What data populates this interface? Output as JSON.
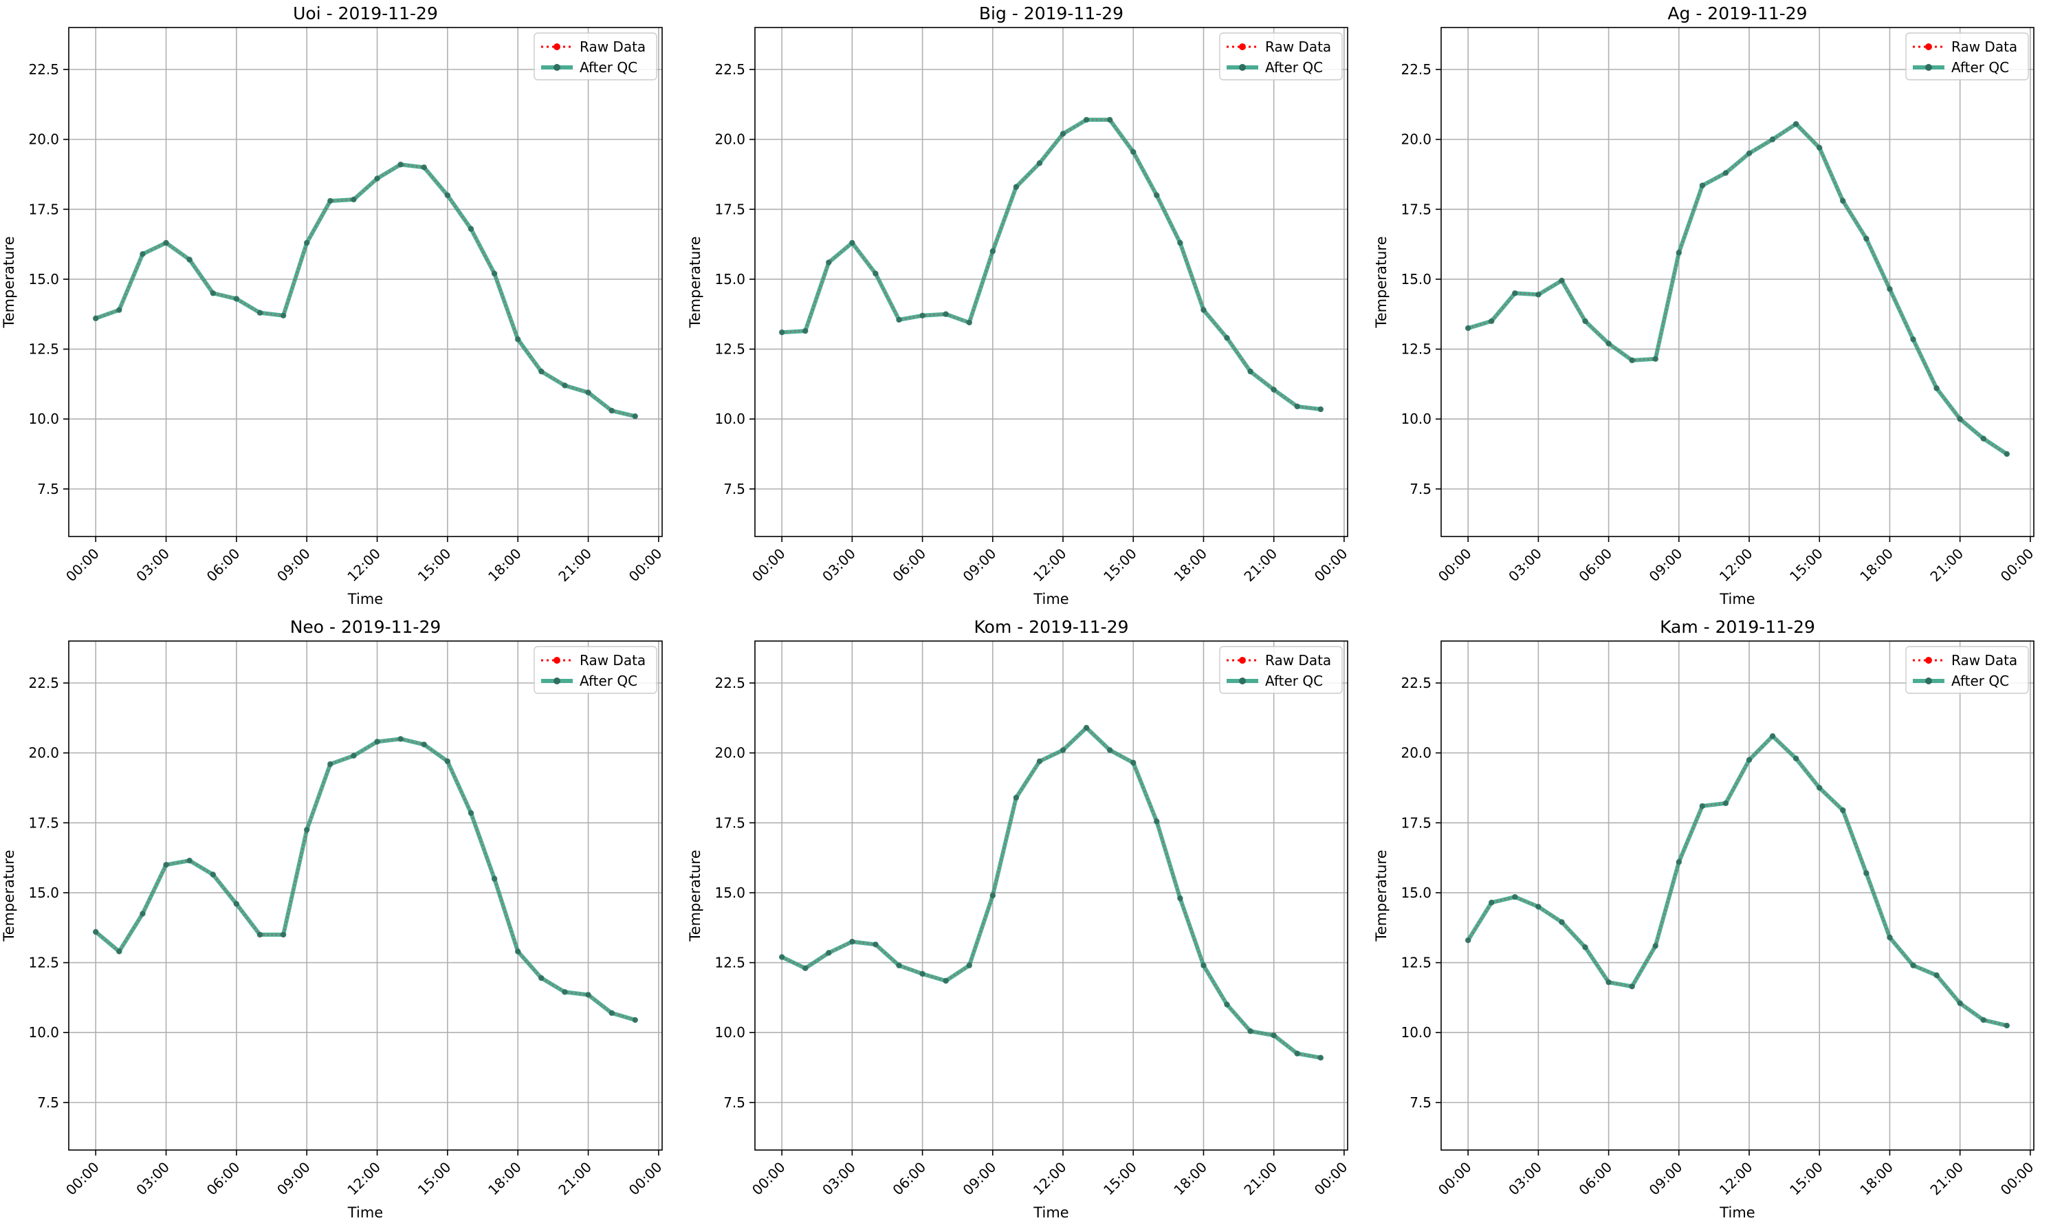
{
  "colors": {
    "raw": "#ff0000",
    "qc": "#2a9d7f",
    "qc_marker": "#2e6e5e"
  },
  "legend": {
    "raw": "Raw Data",
    "qc": "After QC",
    "position": "upper-right"
  },
  "chart_data": [
    {
      "type": "line",
      "title": "Uoi - 2019-11-29",
      "xlabel": "Time",
      "ylabel": "Temperature",
      "xticks": [
        "00:00",
        "03:00",
        "06:00",
        "09:00",
        "12:00",
        "15:00",
        "18:00",
        "21:00",
        "00:00"
      ],
      "yticks": [
        "7.5",
        "10.0",
        "12.5",
        "15.0",
        "17.5",
        "20.0",
        "22.5"
      ],
      "ylim": [
        5.8,
        24.0
      ],
      "x_hours": [
        0,
        1,
        2,
        3,
        4,
        5,
        6,
        7,
        8,
        9,
        10,
        11,
        12,
        13,
        14,
        15,
        16,
        17,
        18,
        19,
        20,
        21,
        22,
        23
      ],
      "grid": true,
      "series": [
        {
          "name": "Raw Data",
          "values": [
            13.6,
            13.9,
            15.9,
            16.3,
            15.7,
            14.5,
            14.3,
            13.8,
            13.7,
            16.3,
            17.8,
            17.85,
            18.6,
            19.1,
            19.0,
            18.0,
            16.8,
            15.2,
            12.85,
            11.7,
            11.2,
            10.95,
            10.3,
            10.1
          ]
        },
        {
          "name": "After QC",
          "values": [
            13.6,
            13.9,
            15.9,
            16.3,
            15.7,
            14.5,
            14.3,
            13.8,
            13.7,
            16.3,
            17.8,
            17.85,
            18.6,
            19.1,
            19.0,
            18.0,
            16.8,
            15.2,
            12.85,
            11.7,
            11.2,
            10.95,
            10.3,
            10.1
          ]
        }
      ]
    },
    {
      "type": "line",
      "title": "Big - 2019-11-29",
      "xlabel": "Time",
      "ylabel": "Temperature",
      "xticks": [
        "00:00",
        "03:00",
        "06:00",
        "09:00",
        "12:00",
        "15:00",
        "18:00",
        "21:00",
        "00:00"
      ],
      "yticks": [
        "7.5",
        "10.0",
        "12.5",
        "15.0",
        "17.5",
        "20.0",
        "22.5"
      ],
      "ylim": [
        5.8,
        24.0
      ],
      "x_hours": [
        0,
        1,
        2,
        3,
        4,
        5,
        6,
        7,
        8,
        9,
        10,
        11,
        12,
        13,
        14,
        15,
        16,
        17,
        18,
        19,
        20,
        21,
        22,
        23
      ],
      "grid": true,
      "series": [
        {
          "name": "Raw Data",
          "values": [
            13.1,
            13.15,
            15.6,
            16.3,
            15.2,
            13.55,
            13.7,
            13.75,
            13.45,
            16.0,
            18.3,
            19.15,
            20.2,
            20.7,
            20.7,
            19.55,
            18.0,
            16.3,
            13.9,
            12.9,
            11.7,
            11.05,
            10.45,
            10.35
          ]
        },
        {
          "name": "After QC",
          "values": [
            13.1,
            13.15,
            15.6,
            16.3,
            15.2,
            13.55,
            13.7,
            13.75,
            13.45,
            16.0,
            18.3,
            19.15,
            20.2,
            20.7,
            20.7,
            19.55,
            18.0,
            16.3,
            13.9,
            12.9,
            11.7,
            11.05,
            10.45,
            10.35
          ]
        }
      ]
    },
    {
      "type": "line",
      "title": "Ag - 2019-11-29",
      "xlabel": "Time",
      "ylabel": "Temperature",
      "xticks": [
        "00:00",
        "03:00",
        "06:00",
        "09:00",
        "12:00",
        "15:00",
        "18:00",
        "21:00",
        "00:00"
      ],
      "yticks": [
        "7.5",
        "10.0",
        "12.5",
        "15.0",
        "17.5",
        "20.0",
        "22.5"
      ],
      "ylim": [
        5.8,
        24.0
      ],
      "x_hours": [
        0,
        1,
        2,
        3,
        4,
        5,
        6,
        7,
        8,
        9,
        10,
        11,
        12,
        13,
        14,
        15,
        16,
        17,
        18,
        19,
        20,
        21,
        22,
        23
      ],
      "grid": true,
      "series": [
        {
          "name": "Raw Data",
          "values": [
            13.25,
            13.5,
            14.5,
            14.45,
            14.95,
            13.5,
            12.7,
            12.1,
            12.15,
            15.95,
            18.35,
            18.8,
            19.5,
            20.0,
            20.55,
            19.7,
            17.8,
            16.45,
            14.65,
            12.85,
            11.1,
            10.0,
            9.3,
            8.75
          ]
        },
        {
          "name": "After QC",
          "values": [
            13.25,
            13.5,
            14.5,
            14.45,
            14.95,
            13.5,
            12.7,
            12.1,
            12.15,
            15.95,
            18.35,
            18.8,
            19.5,
            20.0,
            20.55,
            19.7,
            17.8,
            16.45,
            14.65,
            12.85,
            11.1,
            10.0,
            9.3,
            8.75
          ]
        }
      ]
    },
    {
      "type": "line",
      "title": "Neo - 2019-11-29",
      "xlabel": "Time",
      "ylabel": "Temperature",
      "xticks": [
        "00:00",
        "03:00",
        "06:00",
        "09:00",
        "12:00",
        "15:00",
        "18:00",
        "21:00",
        "00:00"
      ],
      "yticks": [
        "7.5",
        "10.0",
        "12.5",
        "15.0",
        "17.5",
        "20.0",
        "22.5"
      ],
      "ylim": [
        5.8,
        24.0
      ],
      "x_hours": [
        0,
        1,
        2,
        3,
        4,
        5,
        6,
        7,
        8,
        9,
        10,
        11,
        12,
        13,
        14,
        15,
        16,
        17,
        18,
        19,
        20,
        21,
        22,
        23
      ],
      "grid": true,
      "series": [
        {
          "name": "Raw Data",
          "values": [
            13.6,
            12.9,
            14.25,
            16.0,
            16.15,
            15.65,
            14.6,
            13.5,
            13.5,
            17.25,
            19.6,
            19.9,
            20.4,
            20.5,
            20.3,
            19.7,
            17.85,
            15.5,
            12.9,
            11.95,
            11.45,
            11.35,
            10.7,
            10.45
          ]
        },
        {
          "name": "After QC",
          "values": [
            13.6,
            12.9,
            14.25,
            16.0,
            16.15,
            15.65,
            14.6,
            13.5,
            13.5,
            17.25,
            19.6,
            19.9,
            20.4,
            20.5,
            20.3,
            19.7,
            17.85,
            15.5,
            12.9,
            11.95,
            11.45,
            11.35,
            10.7,
            10.45
          ]
        }
      ]
    },
    {
      "type": "line",
      "title": "Kom - 2019-11-29",
      "xlabel": "Time",
      "ylabel": "Temperature",
      "xticks": [
        "00:00",
        "03:00",
        "06:00",
        "09:00",
        "12:00",
        "15:00",
        "18:00",
        "21:00",
        "00:00"
      ],
      "yticks": [
        "7.5",
        "10.0",
        "12.5",
        "15.0",
        "17.5",
        "20.0",
        "22.5"
      ],
      "ylim": [
        5.8,
        24.0
      ],
      "x_hours": [
        0,
        1,
        2,
        3,
        4,
        5,
        6,
        7,
        8,
        9,
        10,
        11,
        12,
        13,
        14,
        15,
        16,
        17,
        18,
        19,
        20,
        21,
        22,
        23
      ],
      "grid": true,
      "series": [
        {
          "name": "Raw Data",
          "values": [
            12.7,
            12.3,
            12.85,
            13.25,
            13.15,
            12.4,
            12.1,
            11.85,
            12.4,
            14.9,
            18.4,
            19.7,
            20.1,
            20.9,
            20.1,
            19.65,
            17.55,
            14.8,
            12.4,
            11.0,
            10.05,
            9.9,
            9.25,
            9.1
          ]
        },
        {
          "name": "After QC",
          "values": [
            12.7,
            12.3,
            12.85,
            13.25,
            13.15,
            12.4,
            12.1,
            11.85,
            12.4,
            14.9,
            18.4,
            19.7,
            20.1,
            20.9,
            20.1,
            19.65,
            17.55,
            14.8,
            12.4,
            11.0,
            10.05,
            9.9,
            9.25,
            9.1
          ]
        }
      ]
    },
    {
      "type": "line",
      "title": "Kam - 2019-11-29",
      "xlabel": "Time",
      "ylabel": "Temperature",
      "xticks": [
        "00:00",
        "03:00",
        "06:00",
        "09:00",
        "12:00",
        "15:00",
        "18:00",
        "21:00",
        "00:00"
      ],
      "yticks": [
        "7.5",
        "10.0",
        "12.5",
        "15.0",
        "17.5",
        "20.0",
        "22.5"
      ],
      "ylim": [
        5.8,
        24.0
      ],
      "x_hours": [
        0,
        1,
        2,
        3,
        4,
        5,
        6,
        7,
        8,
        9,
        10,
        11,
        12,
        13,
        14,
        15,
        16,
        17,
        18,
        19,
        20,
        21,
        22,
        23
      ],
      "grid": true,
      "series": [
        {
          "name": "Raw Data",
          "values": [
            13.3,
            14.65,
            14.85,
            14.5,
            13.95,
            13.05,
            11.8,
            11.65,
            13.1,
            16.1,
            18.1,
            18.2,
            19.75,
            20.6,
            19.8,
            18.75,
            17.95,
            15.7,
            13.4,
            12.4,
            12.05,
            11.05,
            10.45,
            10.25
          ]
        },
        {
          "name": "After QC",
          "values": [
            13.3,
            14.65,
            14.85,
            14.5,
            13.95,
            13.05,
            11.8,
            11.65,
            13.1,
            16.1,
            18.1,
            18.2,
            19.75,
            20.6,
            19.8,
            18.75,
            17.95,
            15.7,
            13.4,
            12.4,
            12.05,
            11.05,
            10.45,
            10.25
          ]
        }
      ]
    }
  ]
}
